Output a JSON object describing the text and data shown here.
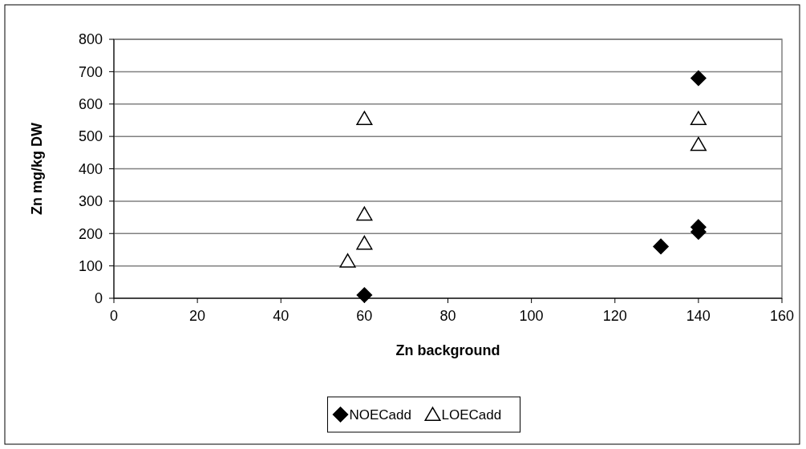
{
  "chart_data": {
    "type": "scatter",
    "xlabel": "Zn background",
    "ylabel": "Zn mg/kg DW",
    "xlim": [
      0,
      160
    ],
    "xticks": [
      0,
      20,
      40,
      60,
      80,
      100,
      120,
      140,
      160
    ],
    "ylim": [
      0,
      800
    ],
    "yticks": [
      0,
      100,
      200,
      300,
      400,
      500,
      600,
      700,
      800
    ],
    "grid": "y",
    "legend": "bottom",
    "series": [
      {
        "name": "NOECadd",
        "color": "#000000",
        "marker": "diamond",
        "x": [
          60,
          131,
          140,
          140,
          140
        ],
        "values": [
          10,
          160,
          220,
          205,
          680
        ]
      },
      {
        "name": "LOECadd",
        "color": "#000000",
        "marker": "triangle",
        "x": [
          56,
          60,
          60,
          60,
          140,
          140
        ],
        "values": [
          115,
          170,
          260,
          555,
          475,
          555
        ]
      }
    ]
  }
}
